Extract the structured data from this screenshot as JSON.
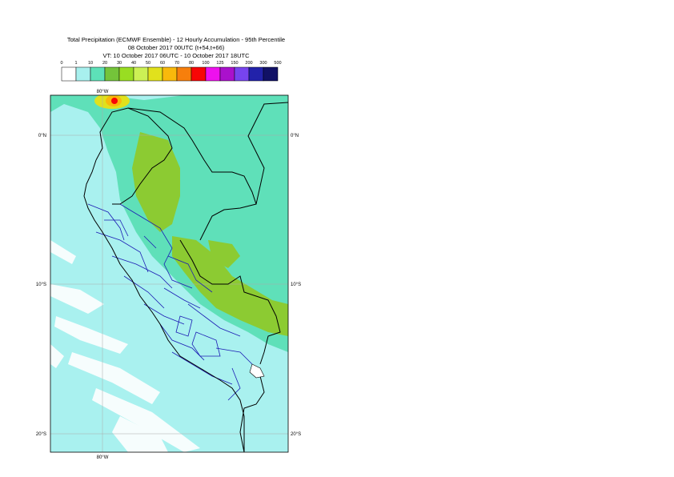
{
  "title": {
    "line1": "Total Precipitation (ECMWF Ensemble) - 12 Hourly Accumulation - 95th Percentile",
    "line2": "08 October 2017 00UTC (t+54,t+66)",
    "line3": "VT: 10 October 2017 06UTC - 10 October 2017 18UTC"
  },
  "legend": {
    "ticks": [
      "0",
      "1",
      "10",
      "20",
      "30",
      "40",
      "50",
      "60",
      "70",
      "80",
      "100",
      "125",
      "150",
      "200",
      "300",
      "500"
    ],
    "colors": [
      "#ffffff",
      "#a8f0ee",
      "#5de1b8",
      "#74c43a",
      "#99dd22",
      "#ccf055",
      "#e1e11c",
      "#f9b90b",
      "#f77f0c",
      "#f70606",
      "#ee11ee",
      "#aa11cc",
      "#7744ee",
      "#2222aa",
      "#111166"
    ]
  },
  "axes": {
    "lon_top": "80°W",
    "lon_bottom": "80°W",
    "lat_left": [
      "0°N",
      "10°S",
      "20°S"
    ],
    "lat_right": [
      "0°N",
      "10°S",
      "20°S"
    ]
  },
  "map_colors": {
    "ocean": "#a9f1ef",
    "green_light": "#5fe0b9",
    "green_dark": "#8ccb32",
    "land_border": "#000000",
    "admin_border": "#1c1cb4",
    "grid": "#aaaaaa"
  }
}
